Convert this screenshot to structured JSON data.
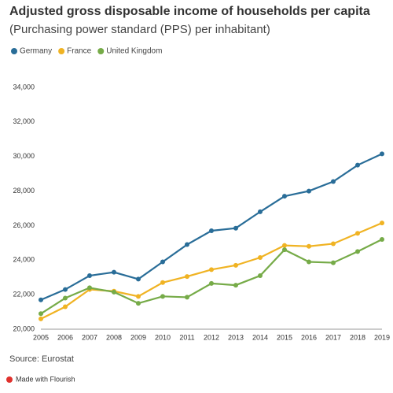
{
  "chart_data": {
    "type": "line",
    "title": "Adjusted gross disposable income of households per capita",
    "subtitle": "(Purchasing power standard (PPS) per inhabitant)",
    "source": "Source: Eurostat",
    "credit": "Made with Flourish",
    "categories": [
      "2005",
      "2006",
      "2007",
      "2008",
      "2009",
      "2010",
      "2011",
      "2012",
      "2013",
      "2014",
      "2015",
      "2016",
      "2017",
      "2018",
      "2019"
    ],
    "series": [
      {
        "name": "Germany",
        "color": "#296d98",
        "values": [
          21700,
          22300,
          23100,
          23300,
          22900,
          23900,
          24900,
          25700,
          25850,
          26800,
          27700,
          28000,
          28550,
          29500,
          30150
        ]
      },
      {
        "name": "France",
        "color": "#f0b323",
        "values": [
          20600,
          21300,
          22300,
          22200,
          21900,
          22700,
          23050,
          23450,
          23700,
          24150,
          24850,
          24800,
          24950,
          25550,
          26150
        ]
      },
      {
        "name": "United Kingdom",
        "color": "#76ab48",
        "values": [
          20900,
          21800,
          22400,
          22150,
          21500,
          21900,
          21850,
          22650,
          22550,
          23100,
          24600,
          23900,
          23850,
          24500,
          25200
        ]
      }
    ],
    "ylim": [
      20000,
      34000
    ],
    "yticks": [
      {
        "value": 20000,
        "label": "20,000"
      },
      {
        "value": 22000,
        "label": "22,000"
      },
      {
        "value": 24000,
        "label": "24,000"
      },
      {
        "value": 26000,
        "label": "26,000"
      },
      {
        "value": 28000,
        "label": "28,000"
      },
      {
        "value": 30000,
        "label": "30,000"
      },
      {
        "value": 32000,
        "label": "32,000"
      },
      {
        "value": 34000,
        "label": "34,000"
      }
    ],
    "grid": false
  }
}
